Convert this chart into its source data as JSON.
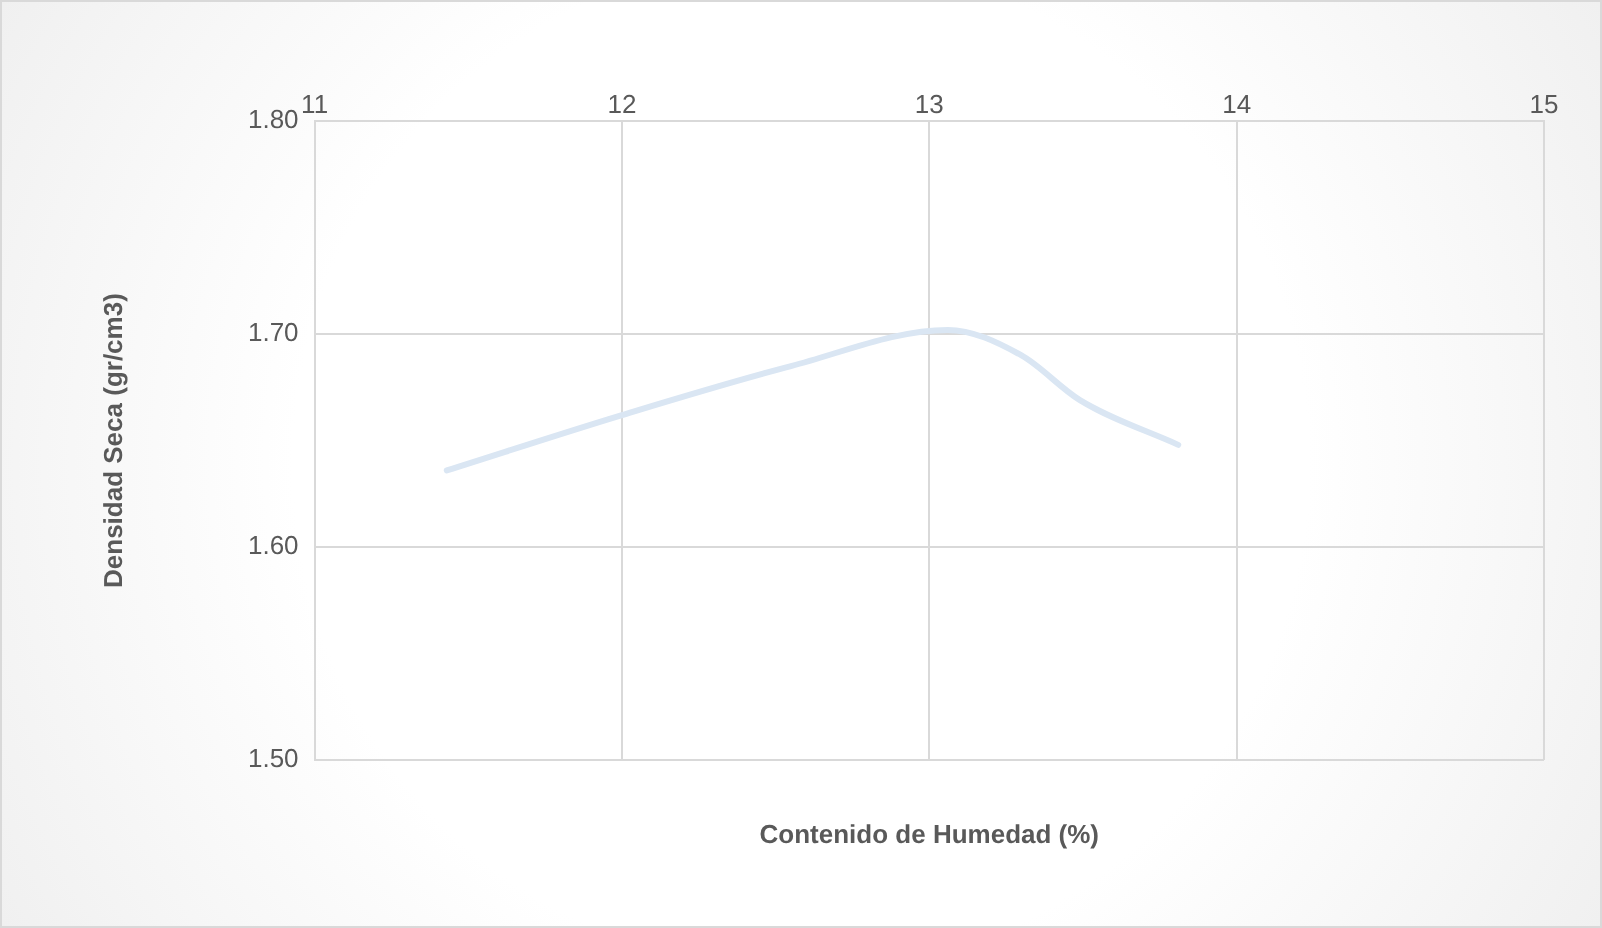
{
  "chart_data": {
    "type": "line",
    "xlabel": "Contenido de Humedad (%)",
    "ylabel": "Densidad Seca (gr/cm3)",
    "x": [
      11.43,
      12.0,
      12.55,
      13.06,
      13.3,
      13.49,
      13.81
    ],
    "series": [
      {
        "color": "#dae6f3",
        "values": [
          1.636,
          1.662,
          1.685,
          1.702,
          1.69,
          1.669,
          1.648
        ]
      }
    ],
    "xlim": [
      11,
      15
    ],
    "xticks": [
      11,
      12,
      13,
      14,
      15
    ],
    "ylim": [
      1.5,
      1.8
    ],
    "yticks": [
      {
        "value": 1.5,
        "label": "1.50"
      },
      {
        "value": 1.6,
        "label": "1.60"
      },
      {
        "value": 1.7,
        "label": "1.70"
      },
      {
        "value": 1.8,
        "label": "1.80"
      }
    ],
    "grid": true,
    "marker": "none",
    "line_style": "solid",
    "legend": false
  }
}
